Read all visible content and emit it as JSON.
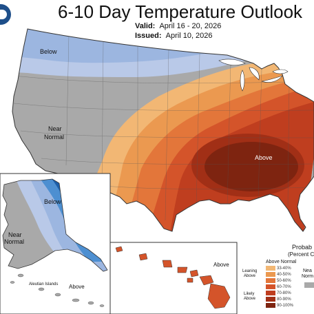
{
  "title": "6-10 Day Temperature Outlook",
  "valid_label": "Valid:",
  "valid_value": "April 16 - 20, 2026",
  "issued_label": "Issued:",
  "issued_value": "April 10, 2026",
  "regions": {
    "conus_below": "Below",
    "conus_near_line1": "Near",
    "conus_near_line2": "Normal",
    "conus_above": "Above",
    "alaska_below": "Below",
    "alaska_near_line1": "Near",
    "alaska_near_line2": "Normal",
    "alaska_above": "Above",
    "aleutian_islands": "Aleutian Islands",
    "hawaii_above": "Above"
  },
  "legend": {
    "title_line1": "Probab",
    "title_line2": "(Percent C",
    "above_header": "Above Normal",
    "leaning_above_line1": "Leaning",
    "leaning_above_line2": "Above",
    "likely_above_line1": "Likely",
    "likely_above_line2": "Above",
    "near_line1": "Nea",
    "near_line2": "Norm",
    "classes": [
      {
        "range": "33-40%",
        "color": "#f2b774"
      },
      {
        "range": "40-50%",
        "color": "#eb9950"
      },
      {
        "range": "50-60%",
        "color": "#e3763a"
      },
      {
        "range": "60-70%",
        "color": "#d4542a"
      },
      {
        "range": "70-80%",
        "color": "#bf3e1f"
      },
      {
        "range": "80-90%",
        "color": "#a12f16"
      },
      {
        "range": "90-100%",
        "color": "#7e2410"
      }
    ],
    "near_color": "#a9a9a9"
  },
  "colors": {
    "below_light": "#b9c9e8",
    "below_mid": "#9cb6e0",
    "below_dark": "#4d8fd1",
    "below_darkest": "#1d5ea8",
    "near": "#a9a9a9",
    "above_1": "#f2b774",
    "above_2": "#eb9950",
    "above_3": "#e3763a",
    "above_4": "#d4542a",
    "above_5": "#bf3e1f",
    "above_6": "#a12f16",
    "above_7": "#7e2410"
  },
  "icons": [
    "noaa-logo-icon"
  ]
}
